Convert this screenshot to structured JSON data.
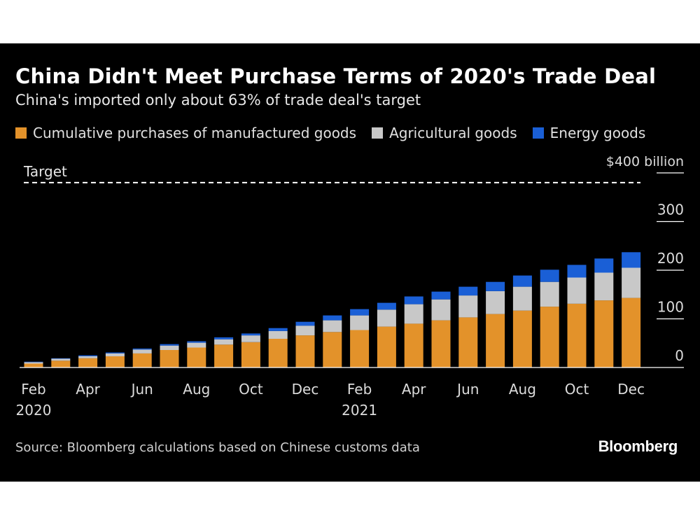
{
  "title": "China Didn't Meet Purchase Terms of 2020's Trade Deal",
  "subtitle": "China's imported only about 63% of trade deal's target",
  "source": "Source: Bloomberg calculations based on Chinese customs data",
  "brand": "Bloomberg",
  "colors": {
    "background": "#000000",
    "manufactured": "#e3922a",
    "agricultural": "#c8c8c8",
    "energy": "#1a5fd6",
    "text": "#ffffff"
  },
  "chart_data": {
    "type": "bar",
    "stacked": true,
    "title": "China Didn't Meet Purchase Terms of 2020's Trade Deal",
    "y_unit_label": "$400 billion",
    "ylim": [
      0,
      400
    ],
    "y_ticks": [
      0,
      100,
      200,
      300,
      400
    ],
    "y_tick_labels": [
      "0",
      "100",
      "200",
      "300",
      "$400 billion"
    ],
    "target_label": "Target",
    "target_value": 380,
    "categories": [
      "Feb 2020",
      "Mar 2020",
      "Apr 2020",
      "May 2020",
      "Jun 2020",
      "Jul 2020",
      "Aug 2020",
      "Sep 2020",
      "Oct 2020",
      "Nov 2020",
      "Dec 2020",
      "Jan 2021",
      "Feb 2021",
      "Mar 2021",
      "Apr 2021",
      "May 2021",
      "Jun 2021",
      "Jul 2021",
      "Aug 2021",
      "Sep 2021",
      "Oct 2021",
      "Nov 2021",
      "Dec 2021"
    ],
    "x_tick_labels": [
      {
        "index": 0,
        "month": "Feb",
        "year": "2020"
      },
      {
        "index": 2,
        "month": "Apr",
        "year": ""
      },
      {
        "index": 4,
        "month": "Jun",
        "year": ""
      },
      {
        "index": 6,
        "month": "Aug",
        "year": ""
      },
      {
        "index": 8,
        "month": "Oct",
        "year": ""
      },
      {
        "index": 10,
        "month": "Dec",
        "year": ""
      },
      {
        "index": 12,
        "month": "Feb",
        "year": "2021"
      },
      {
        "index": 14,
        "month": "Apr",
        "year": ""
      },
      {
        "index": 16,
        "month": "Jun",
        "year": ""
      },
      {
        "index": 18,
        "month": "Aug",
        "year": ""
      },
      {
        "index": 20,
        "month": "Oct",
        "year": ""
      },
      {
        "index": 22,
        "month": "Dec",
        "year": ""
      }
    ],
    "series": [
      {
        "name": "Cumulative purchases of manufactured goods",
        "color": "#e3922a",
        "values": [
          8,
          14,
          19,
          23,
          29,
          36,
          41,
          47,
          52,
          59,
          66,
          73,
          77,
          84,
          90,
          97,
          103,
          110,
          117,
          125,
          131,
          138,
          143
        ]
      },
      {
        "name": "Agricultural goods",
        "color": "#c8c8c8",
        "values": [
          3,
          4,
          4,
          6,
          8,
          9,
          10,
          11,
          14,
          16,
          20,
          24,
          30,
          35,
          40,
          43,
          45,
          47,
          49,
          51,
          54,
          57,
          62
        ]
      },
      {
        "name": "Energy goods",
        "color": "#1a5fd6",
        "values": [
          1,
          1,
          2,
          2,
          2,
          3,
          3,
          4,
          4,
          6,
          8,
          10,
          13,
          14,
          16,
          16,
          18,
          19,
          23,
          25,
          26,
          29,
          32
        ]
      }
    ]
  }
}
